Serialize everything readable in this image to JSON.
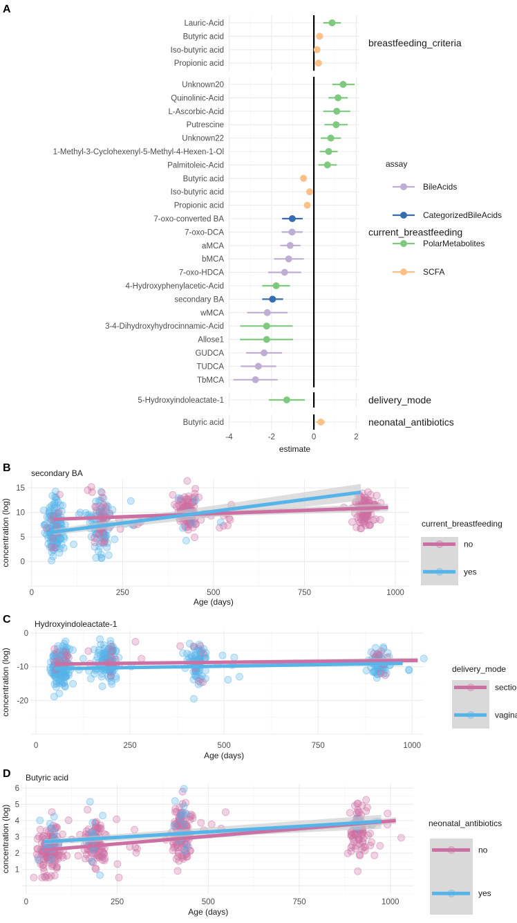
{
  "colors": {
    "BileAcids": "#beaed4",
    "CategorizedBileAcids": "#386cb0",
    "PolarMetabolites": "#7fc97f",
    "SCFA": "#fdc086",
    "group_a": "#cc6fa3",
    "group_b": "#56b4e9",
    "ribbon": "#c8c8c8"
  },
  "chart_data": [
    {
      "panel": "A",
      "type": "forest",
      "xlabel": "estimate",
      "xlim": [
        -4.05,
        2.15
      ],
      "xticks": [
        -4,
        -2,
        0,
        2
      ],
      "reference_line": 0,
      "grid": true,
      "legend": {
        "title": "assay",
        "placement": "right",
        "entries": [
          "BileAcids",
          "CategorizedBileAcids",
          "PolarMetabolites",
          "SCFA"
        ]
      },
      "facets": [
        {
          "strip": "breastfeeding_criteria",
          "rows": [
            {
              "label": "Lauric-Acid",
              "assay": "PolarMetabolites",
              "estimate": 0.86,
              "lo": 0.44,
              "hi": 1.28
            },
            {
              "label": "Butyric acid",
              "assay": "SCFA",
              "estimate": 0.27,
              "lo": 0.17,
              "hi": 0.37
            },
            {
              "label": "Iso-butyric acid",
              "assay": "SCFA",
              "estimate": 0.15,
              "lo": 0.06,
              "hi": 0.24
            },
            {
              "label": "Propionic acid",
              "assay": "SCFA",
              "estimate": 0.22,
              "lo": 0.12,
              "hi": 0.32
            }
          ]
        },
        {
          "strip": "current_breastfeeding",
          "rows": [
            {
              "label": "Unknown20",
              "assay": "PolarMetabolites",
              "estimate": 1.38,
              "lo": 0.87,
              "hi": 1.92
            },
            {
              "label": "Quinolinic-Acid",
              "assay": "PolarMetabolites",
              "estimate": 1.14,
              "lo": 0.69,
              "hi": 1.6
            },
            {
              "label": "L-Ascorbic-Acid",
              "assay": "PolarMetabolites",
              "estimate": 1.08,
              "lo": 0.44,
              "hi": 1.72
            },
            {
              "label": "Putrescine",
              "assay": "PolarMetabolites",
              "estimate": 1.05,
              "lo": 0.5,
              "hi": 1.6
            },
            {
              "label": "Unknown22",
              "assay": "PolarMetabolites",
              "estimate": 0.8,
              "lo": 0.33,
              "hi": 1.28
            },
            {
              "label": "1-Methyl-3-Cyclohexenyl-5-Methyl-4-Hexen-1-Ol",
              "assay": "PolarMetabolites",
              "estimate": 0.7,
              "lo": 0.28,
              "hi": 1.12
            },
            {
              "label": "Palmitoleic-Acid",
              "assay": "PolarMetabolites",
              "estimate": 0.64,
              "lo": 0.21,
              "hi": 1.08
            },
            {
              "label": "Butyric acid",
              "assay": "SCFA",
              "estimate": -0.49,
              "lo": -0.58,
              "hi": -0.4
            },
            {
              "label": "Iso-butyric acid",
              "assay": "SCFA",
              "estimate": -0.2,
              "lo": -0.28,
              "hi": -0.12
            },
            {
              "label": "Propionic acid",
              "assay": "SCFA",
              "estimate": -0.31,
              "lo": -0.4,
              "hi": -0.22
            },
            {
              "label": "7-oxo-converted BA",
              "assay": "CategorizedBileAcids",
              "estimate": -1.02,
              "lo": -1.5,
              "hi": -0.53
            },
            {
              "label": "7-oxo-DCA",
              "assay": "BileAcids",
              "estimate": -1.03,
              "lo": -1.52,
              "hi": -0.53
            },
            {
              "label": "aMCA",
              "assay": "BileAcids",
              "estimate": -1.12,
              "lo": -1.59,
              "hi": -0.63
            },
            {
              "label": "bMCA",
              "assay": "BileAcids",
              "estimate": -1.19,
              "lo": -1.88,
              "hi": -0.47
            },
            {
              "label": "7-oxo-HDCA",
              "assay": "BileAcids",
              "estimate": -1.38,
              "lo": -2.16,
              "hi": -0.6
            },
            {
              "label": "4-Hydroxyphenylacetic-Acid",
              "assay": "PolarMetabolites",
              "estimate": -1.78,
              "lo": -2.44,
              "hi": -1.13
            },
            {
              "label": "secondary BA",
              "assay": "CategorizedBileAcids",
              "estimate": -1.95,
              "lo": -2.44,
              "hi": -1.45
            },
            {
              "label": "wMCA",
              "assay": "BileAcids",
              "estimate": -2.2,
              "lo": -3.15,
              "hi": -1.24
            },
            {
              "label": "3-4-Dihydroxyhydrocinnamic-Acid",
              "assay": "PolarMetabolites",
              "estimate": -2.23,
              "lo": -3.48,
              "hi": -1.0
            },
            {
              "label": "Allose1",
              "assay": "PolarMetabolites",
              "estimate": -2.23,
              "lo": -3.49,
              "hi": -0.98
            },
            {
              "label": "GUDCA",
              "assay": "BileAcids",
              "estimate": -2.35,
              "lo": -3.2,
              "hi": -1.5
            },
            {
              "label": "TUDCA",
              "assay": "BileAcids",
              "estimate": -2.62,
              "lo": -3.45,
              "hi": -1.78
            },
            {
              "label": "TbMCA",
              "assay": "BileAcids",
              "estimate": -2.76,
              "lo": -3.8,
              "hi": -1.71
            }
          ]
        },
        {
          "strip": "delivery_mode",
          "rows": [
            {
              "label": "5-Hydroxyindoleactate-1",
              "assay": "PolarMetabolites",
              "estimate": -1.28,
              "lo": -2.13,
              "hi": -0.43
            }
          ]
        },
        {
          "strip": "neonatal_antibiotics",
          "rows": [
            {
              "label": "Butyric acid",
              "assay": "SCFA",
              "estimate": 0.33,
              "lo": 0.1,
              "hi": 0.53
            }
          ]
        }
      ]
    },
    {
      "panel": "B",
      "type": "scatter",
      "title": "secondary BA",
      "xlabel": "Age (days)",
      "ylabel": "concentration (log)",
      "xlim": [
        -11,
        1038
      ],
      "ylim": [
        -5,
        16.7
      ],
      "xticks": [
        0,
        250,
        500,
        750,
        1000
      ],
      "yticks": [
        0,
        5,
        10,
        15
      ],
      "legend": {
        "title": "current_breastfeeding",
        "placement": "right",
        "entries": [
          "no",
          "yes"
        ]
      },
      "trend": [
        {
          "name": "no",
          "x": [
            60,
            980
          ],
          "y": [
            8.6,
            11.0
          ],
          "ci_end": [
            10.2,
            11.8
          ]
        },
        {
          "name": "yes",
          "x": [
            60,
            905
          ],
          "y": [
            6.0,
            14.1
          ],
          "ci_end": [
            12.4,
            15.8
          ]
        }
      ],
      "clusters": [
        {
          "age": 65,
          "name": "yes",
          "y_mean": 6.5,
          "y_sd": 2.6,
          "n": 140
        },
        {
          "age": 65,
          "name": "no",
          "y_mean": 8,
          "y_sd": 2.5,
          "n": 10
        },
        {
          "age": 190,
          "name": "yes",
          "y_mean": 7,
          "y_sd": 2.6,
          "n": 90
        },
        {
          "age": 190,
          "name": "no",
          "y_mean": 8.5,
          "y_sd": 2.5,
          "n": 40
        },
        {
          "age": 430,
          "name": "no",
          "y_mean": 10,
          "y_sd": 2,
          "n": 110
        },
        {
          "age": 430,
          "name": "yes",
          "y_mean": 9.5,
          "y_sd": 2.5,
          "n": 8
        },
        {
          "age": 915,
          "name": "no",
          "y_mean": 10.5,
          "y_sd": 1.8,
          "n": 100
        }
      ]
    },
    {
      "panel": "C",
      "type": "scatter",
      "title": "Hydroxyindoleactate-1",
      "xlabel": "Age (days)",
      "ylabel": "concentration (log)",
      "xlim": [
        -13,
        1029
      ],
      "ylim": [
        -30,
        0.8
      ],
      "xticks": [
        0,
        250,
        500,
        750,
        1000
      ],
      "yticks": [
        0,
        -10,
        -20
      ],
      "legend": {
        "title": "delivery_mode",
        "placement": "right",
        "entries": [
          "section",
          "vaginal"
        ]
      },
      "trend": [
        {
          "name": "section",
          "x": [
            50,
            1015
          ],
          "y": [
            -9.2,
            -8.1
          ],
          "ci_end": [
            -8.9,
            -7.3
          ]
        },
        {
          "name": "vaginal",
          "x": [
            50,
            975
          ],
          "y": [
            -10.6,
            -9.0
          ],
          "ci_end": [
            -9.6,
            -8.4
          ]
        }
      ],
      "clusters": [
        {
          "age": 65,
          "name": "vaginal",
          "y_mean": -10,
          "y_sd": 3.2,
          "n": 150
        },
        {
          "age": 65,
          "name": "section",
          "y_mean": -9,
          "y_sd": 3,
          "n": 15
        },
        {
          "age": 190,
          "name": "vaginal",
          "y_mean": -8.5,
          "y_sd": 2.8,
          "n": 100
        },
        {
          "age": 190,
          "name": "section",
          "y_mean": -8,
          "y_sd": 2.5,
          "n": 15
        },
        {
          "age": 430,
          "name": "vaginal",
          "y_mean": -9,
          "y_sd": 2.8,
          "n": 80
        },
        {
          "age": 430,
          "name": "section",
          "y_mean": -9,
          "y_sd": 3,
          "n": 8
        },
        {
          "age": 915,
          "name": "vaginal",
          "y_mean": -9,
          "y_sd": 2,
          "n": 70
        },
        {
          "age": 915,
          "name": "section",
          "y_mean": -8,
          "y_sd": 2,
          "n": 10
        }
      ]
    },
    {
      "panel": "D",
      "type": "scatter",
      "title": "Butyric acid",
      "xlabel": "Age (days)",
      "ylabel": "concentration (log)",
      "xlim": [
        -11,
        1063
      ],
      "ylim": [
        -0.5,
        6.25
      ],
      "xticks": [
        0,
        250,
        500,
        750,
        1000
      ],
      "yticks": [
        1,
        2,
        3,
        4,
        5,
        6
      ],
      "legend": {
        "title": "neonatal_antibiotics",
        "placement": "right",
        "entries": [
          "no",
          "yes"
        ]
      },
      "trend": [
        {
          "name": "no",
          "x": [
            50,
            1015
          ],
          "y": [
            2.2,
            4.0
          ],
          "ci_end": [
            3.8,
            4.2
          ]
        },
        {
          "name": "yes",
          "x": [
            50,
            975
          ],
          "y": [
            2.7,
            3.95
          ],
          "ci_end": [
            3.5,
            4.35
          ]
        }
      ],
      "clusters": [
        {
          "age": 65,
          "name": "no",
          "y_mean": 2.3,
          "y_sd": 0.75,
          "n": 150
        },
        {
          "age": 65,
          "name": "yes",
          "y_mean": 2.6,
          "y_sd": 0.8,
          "n": 15
        },
        {
          "age": 190,
          "name": "no",
          "y_mean": 2.5,
          "y_sd": 0.8,
          "n": 110
        },
        {
          "age": 190,
          "name": "yes",
          "y_mean": 2.8,
          "y_sd": 0.9,
          "n": 12
        },
        {
          "age": 430,
          "name": "no",
          "y_mean": 3.3,
          "y_sd": 0.9,
          "n": 130
        },
        {
          "age": 430,
          "name": "yes",
          "y_mean": 3.5,
          "y_sd": 1.0,
          "n": 15
        },
        {
          "age": 915,
          "name": "no",
          "y_mean": 3.6,
          "y_sd": 0.8,
          "n": 100
        },
        {
          "age": 915,
          "name": "yes",
          "y_mean": 3.8,
          "y_sd": 0.5,
          "n": 8
        }
      ]
    }
  ]
}
